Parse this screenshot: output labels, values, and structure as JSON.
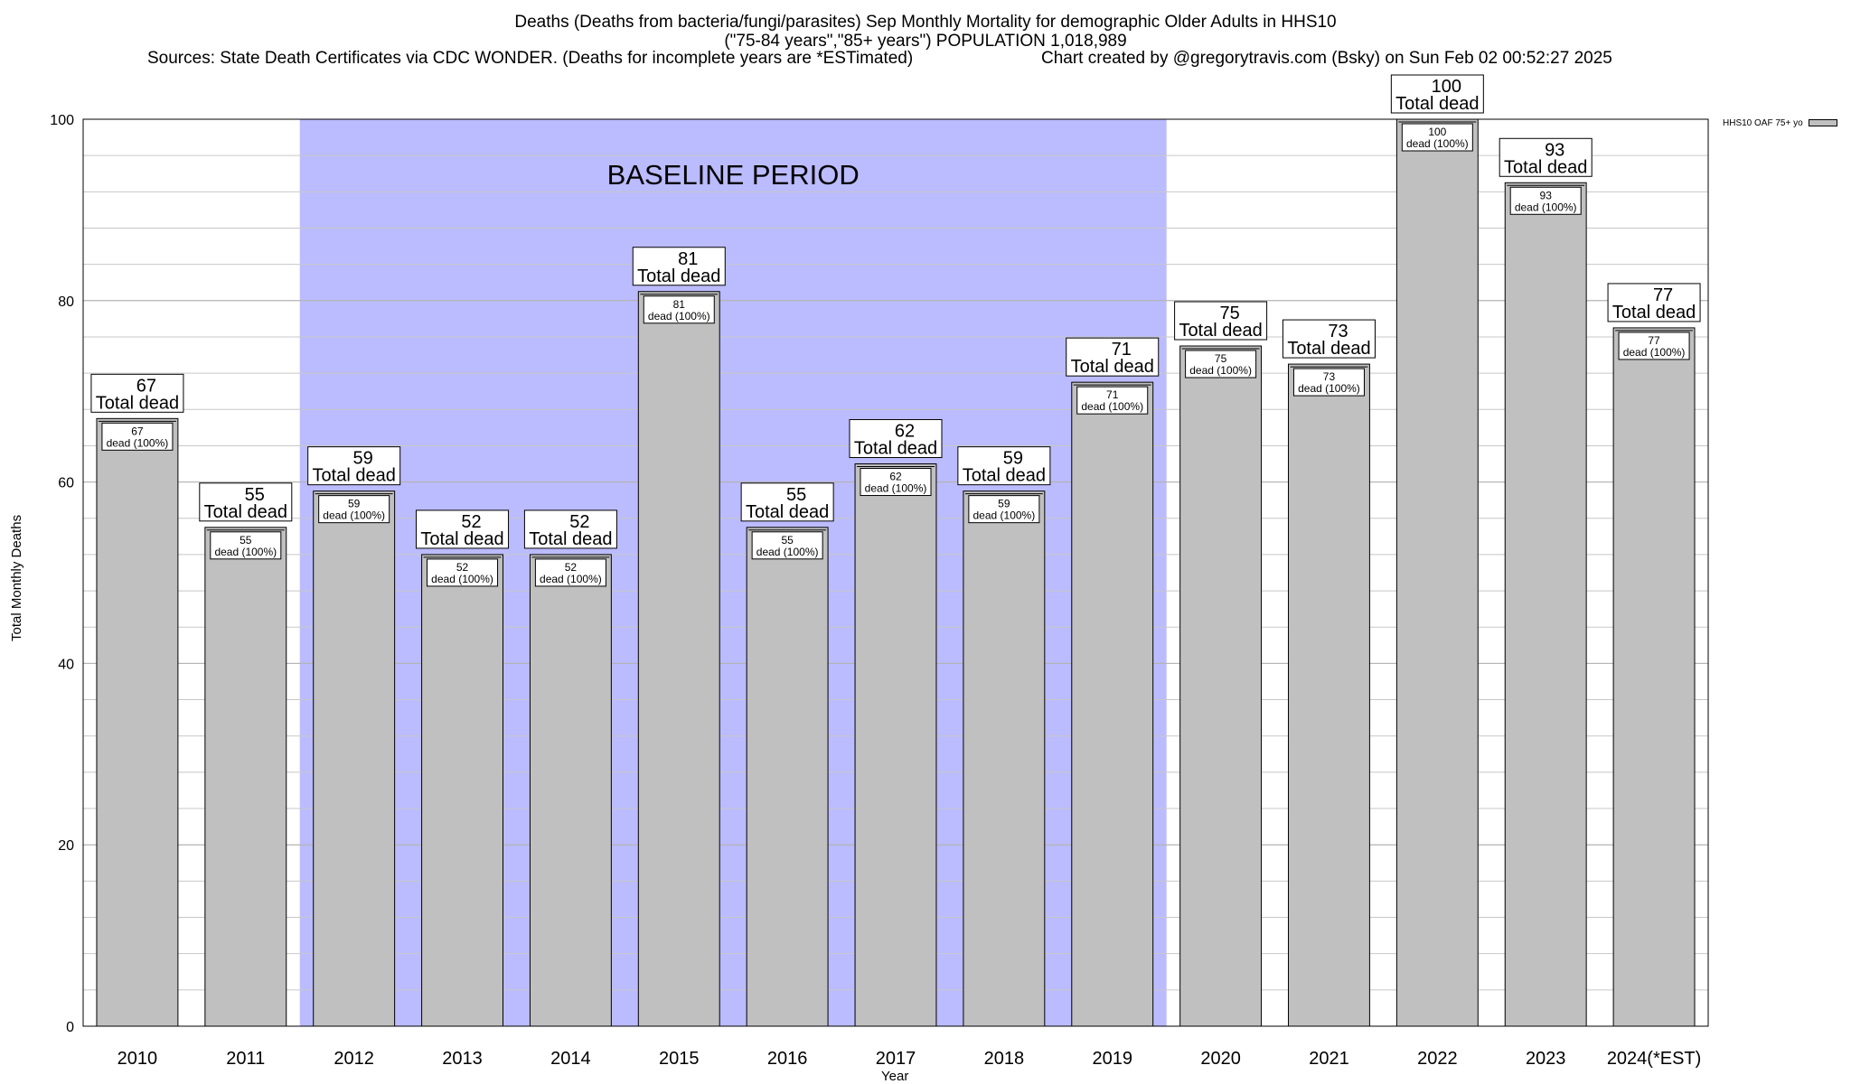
{
  "header": {
    "title_line1": "Deaths (Deaths from bacteria/fungi/parasites) Sep Monthly Mortality for demographic Older Adults in HHS10",
    "title_line2": "(\"75-84 years\",\"85+ years\") POPULATION 1,018,989",
    "sources": "Sources: State Death Certificates via CDC WONDER. (Deaths for incomplete years are *ESTimated)",
    "credit": "Chart created by @gregorytravis.com (Bsky) on Sun Feb 02 00:52:27 2025"
  },
  "legend": {
    "label": "HHS10 OAF 75+ yo"
  },
  "colors": {
    "bar": "#c0c0c0",
    "baseline": "#bbbbff",
    "grid": "#c8c8c8"
  },
  "chart_data": {
    "type": "bar",
    "title": "Deaths (Deaths from bacteria/fungi/parasites) Sep Monthly Mortality for demographic Older Adults in HHS10",
    "xlabel": "Year",
    "ylabel": "Total Monthly Deaths",
    "ylim": [
      0,
      100
    ],
    "yticks": [
      0,
      20,
      40,
      60,
      80,
      100
    ],
    "grid": true,
    "legend_position": "top-right",
    "categories": [
      "2010",
      "2011",
      "2012",
      "2013",
      "2014",
      "2015",
      "2016",
      "2017",
      "2018",
      "2019",
      "2020",
      "2021",
      "2022",
      "2023",
      "2024(*EST)"
    ],
    "series": [
      {
        "name": "HHS10 OAF 75+ yo",
        "values": [
          67,
          55,
          59,
          52,
          52,
          81,
          55,
          62,
          59,
          71,
          75,
          73,
          100,
          93,
          77
        ]
      }
    ],
    "outer_label_suffix": "Total dead",
    "inner_label_suffix": "dead (100%)",
    "baseline_period": {
      "label": "BASELINE PERIOD",
      "from": "2012",
      "to": "2019"
    }
  }
}
